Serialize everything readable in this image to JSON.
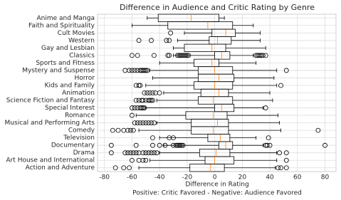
{
  "chart_data": {
    "type": "box",
    "orientation": "horizontal",
    "title": "Difference in Audience and Critic Rating by Genre",
    "xlabel": [
      "Difference in Rating",
      "Positive: Critic Favored - Negative: Audience Favored"
    ],
    "xlim": [
      -85,
      88
    ],
    "xticks": [
      -80,
      -60,
      -40,
      -20,
      0,
      20,
      40,
      60,
      80
    ],
    "grid": true,
    "box_color": "#000000",
    "median_color": "#ff7f0e",
    "categories": [
      "Action and Adventure",
      "Art House and International",
      "Drama",
      "Documentary",
      "Television",
      "Comedy",
      "Musical and Performing Arts",
      "Romance",
      "Special Interest",
      "Science Fiction and Fantasy",
      "Animation",
      "Kids and Family",
      "Horror",
      "Mystery and Suspense",
      "Sports and Fitness",
      "Classics",
      "Gay and Lesbian",
      "Western",
      "Cult Movies",
      "Faith and Spirituality",
      "Anime and Manga"
    ],
    "boxes": [
      {
        "whislo": -55,
        "q1": -18,
        "med": -3,
        "q3": 7,
        "whishi": 44,
        "fliers": [
          -72,
          -66,
          -62,
          46,
          48,
          52
        ]
      },
      {
        "whislo": -47,
        "q1": -7,
        "med": 0,
        "q3": 14,
        "whishi": 45,
        "fliers": [
          -60,
          -55,
          -52,
          -50,
          52
        ]
      },
      {
        "whislo": -40,
        "q1": -11,
        "med": 1,
        "q3": 11,
        "whishi": 45,
        "fliers": [
          -75,
          -65,
          -63,
          -61,
          -59,
          -57,
          -55,
          -52,
          -50,
          -48,
          -46,
          -44,
          -42,
          47,
          52
        ]
      },
      {
        "whislo": -37,
        "q1": 3,
        "med": 8,
        "q3": 13,
        "whishi": 35,
        "fliers": [
          -75,
          -57,
          -45,
          -40,
          -36,
          -30,
          -28,
          -27,
          -26,
          -25,
          -24,
          -23,
          37,
          38,
          40,
          80
        ]
      },
      {
        "whislo": -40,
        "q1": -5,
        "med": 4,
        "q3": 11,
        "whishi": 30,
        "fliers": [
          -45,
          -33,
          -30,
          39
        ]
      },
      {
        "whislo": -55,
        "q1": -17,
        "med": -1,
        "q3": 10,
        "whishi": 48,
        "fliers": [
          -74,
          -70,
          -66,
          -63,
          -61,
          -59,
          75
        ]
      },
      {
        "whislo": -42,
        "q1": -17,
        "med": 2,
        "q3": 10,
        "whishi": 47,
        "fliers": [
          -58,
          -56,
          -54,
          -52,
          -50,
          -48,
          -46,
          -44
        ]
      },
      {
        "whislo": -57,
        "q1": -21,
        "med": -1,
        "q3": 9,
        "whishi": 46,
        "fliers": [
          -60
        ]
      },
      {
        "whislo": -50,
        "q1": 0,
        "med": 5,
        "q3": 14,
        "whishi": 35,
        "fliers": [
          -60,
          -58,
          -56,
          -54,
          -53,
          -52,
          -51,
          37
        ]
      },
      {
        "whislo": -42,
        "q1": -12,
        "med": -1,
        "q3": 13,
        "whishi": 42,
        "fliers": [
          -57,
          -55,
          -53,
          -52,
          -50,
          -48,
          -47,
          -46,
          -45
        ]
      },
      {
        "whislo": -37,
        "q1": -10,
        "med": 3,
        "q3": 10,
        "whishi": 40,
        "fliers": [
          -51,
          -49,
          -47,
          -45,
          -43,
          -40
        ]
      },
      {
        "whislo": -50,
        "q1": -15,
        "med": 0,
        "q3": 13,
        "whishi": 45,
        "fliers": [
          -57,
          -55,
          -54,
          48
        ]
      },
      {
        "whislo": -45,
        "q1": -12,
        "med": 3,
        "q3": 14,
        "whishi": 43,
        "fliers": []
      },
      {
        "whislo": -47,
        "q1": -12,
        "med": 0,
        "q3": 13,
        "whishi": 45,
        "fliers": [
          -65,
          -62,
          -60,
          -58,
          -56,
          -54,
          -53,
          -52,
          -51,
          -50,
          -49,
          52
        ]
      },
      {
        "whislo": -40,
        "q1": -15,
        "med": -2,
        "q3": 3,
        "whishi": 30,
        "fliers": []
      },
      {
        "whislo": -30,
        "q1": 0,
        "med": 5,
        "q3": 11,
        "whishi": 28,
        "fliers": [
          -60,
          -56,
          -44,
          -34,
          -33,
          -27,
          -26,
          -25,
          -24,
          -23,
          -22,
          -21,
          -20,
          -19,
          30,
          31,
          32,
          33,
          34,
          35,
          37
        ]
      },
      {
        "whislo": -30,
        "q1": -22,
        "med": -2,
        "q3": 8,
        "whishi": 37,
        "fliers": []
      },
      {
        "whislo": -27,
        "q1": -4,
        "med": 2,
        "q3": 12,
        "whishi": 33,
        "fliers": [
          -55,
          -46,
          -35,
          -33
        ]
      },
      {
        "whislo": -22,
        "q1": -2,
        "med": 8,
        "q3": 15,
        "whishi": 33,
        "fliers": [
          -32
        ]
      },
      {
        "whislo": -60,
        "q1": -34,
        "med": -5,
        "q3": 13,
        "whishi": 28,
        "fliers": []
      },
      {
        "whislo": -49,
        "q1": -41,
        "med": -17,
        "q3": 3,
        "whishi": 7,
        "fliers": []
      }
    ]
  }
}
